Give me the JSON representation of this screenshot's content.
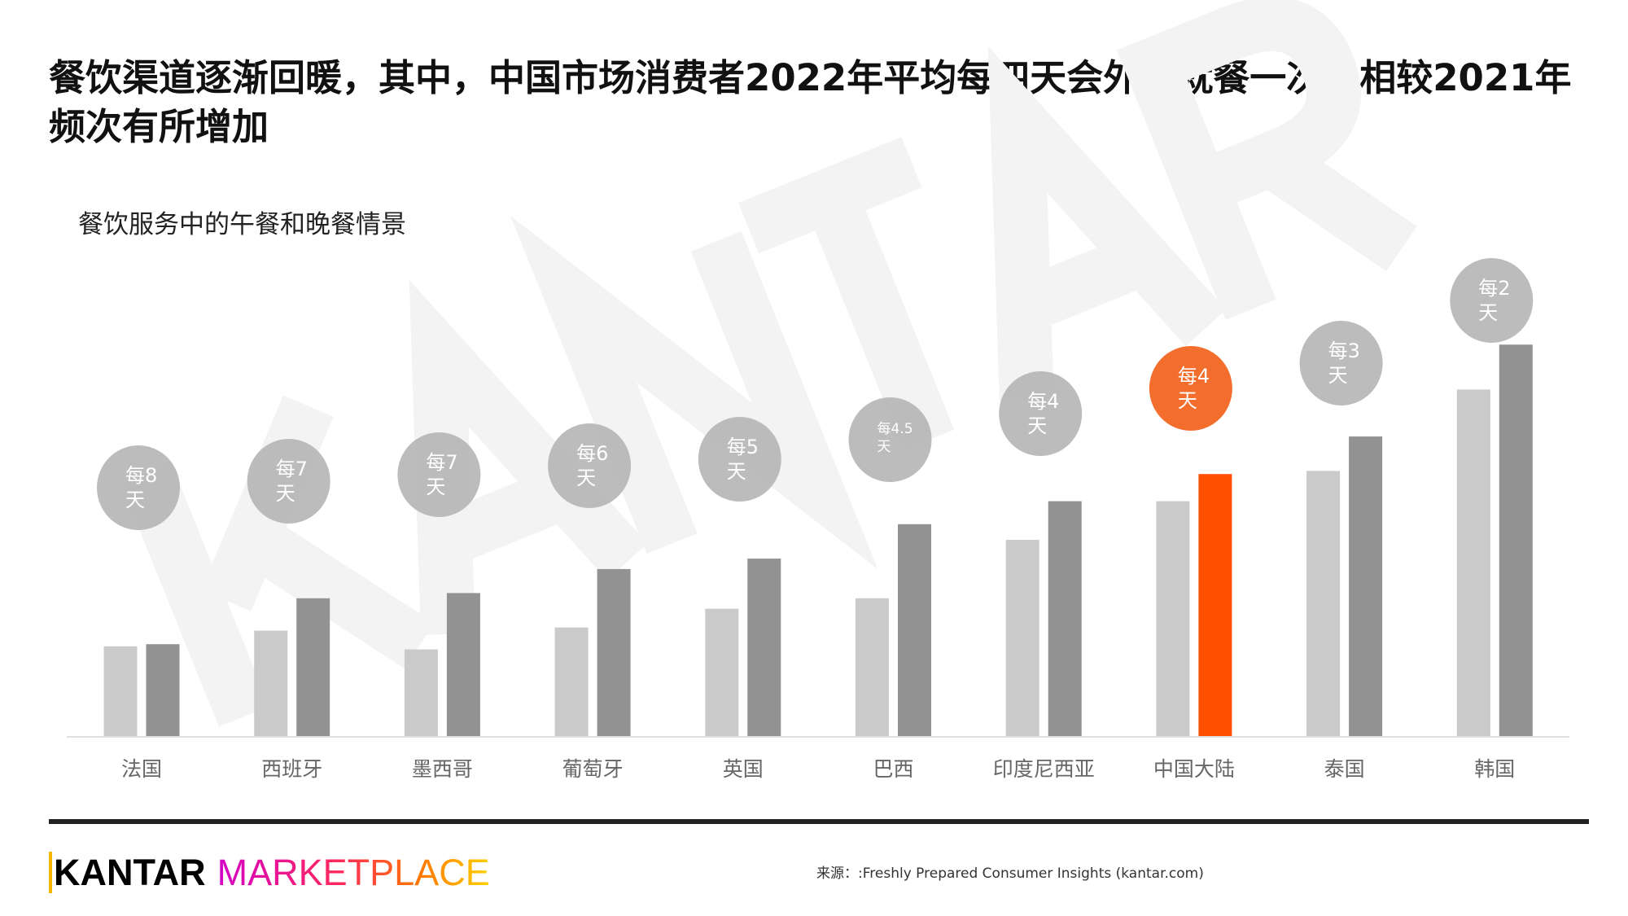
{
  "title": "餐饮渠道逐渐回暖，其中，中国市场消费者2022年平均每四天会外出就餐一次，相较2021年频次有所增加",
  "watermark": "KANTAR",
  "footer": {
    "logo_primary": "KANTAR",
    "logo_secondary": "MARKETPLACE",
    "source": "来源：:Freshly Prepared Consumer Insights (kantar.com)"
  },
  "colors": {
    "light_bar": "#cacaca",
    "dark_bar": "#929292",
    "highlight_bar": "#ff5000",
    "bubble": "#b5b5b5",
    "highlight_bubble": "#f26522"
  },
  "chart_data": {
    "type": "bar",
    "title": "餐饮服务中的午餐和晚餐情景",
    "xlabel": "",
    "ylabel": "",
    "categories": [
      "法国",
      "西班牙",
      "墨西哥",
      "葡萄牙",
      "英国",
      "巴西",
      "印度尼西亚",
      "中国大陆",
      "泰国",
      "韩国"
    ],
    "series": [
      {
        "values": [
          86,
          101,
          83,
          104,
          122,
          132,
          188,
          225,
          254,
          332
        ]
      },
      {
        "values": [
          88,
          132,
          137,
          160,
          170,
          203,
          225,
          251,
          287,
          375
        ]
      }
    ],
    "annotations": [
      "每8天",
      "每7天",
      "每7天",
      "每6天",
      "每5天",
      "每4.5天",
      "每4天",
      "每4天",
      "每3天",
      "每2天"
    ],
    "annotation_lines": [
      [
        "每",
        "8天"
      ],
      [
        "每",
        "7天"
      ],
      [
        "每",
        "7天"
      ],
      [
        "每",
        "6天"
      ],
      [
        "每",
        "5天"
      ],
      [
        "每4.5",
        "天"
      ],
      [
        "每",
        "4天"
      ],
      [
        "每",
        "4天"
      ],
      [
        "每",
        "3天"
      ],
      [
        "每",
        "2天"
      ]
    ],
    "highlight_index": 7,
    "ylim": [
      0,
      400
    ],
    "grid": false
  }
}
